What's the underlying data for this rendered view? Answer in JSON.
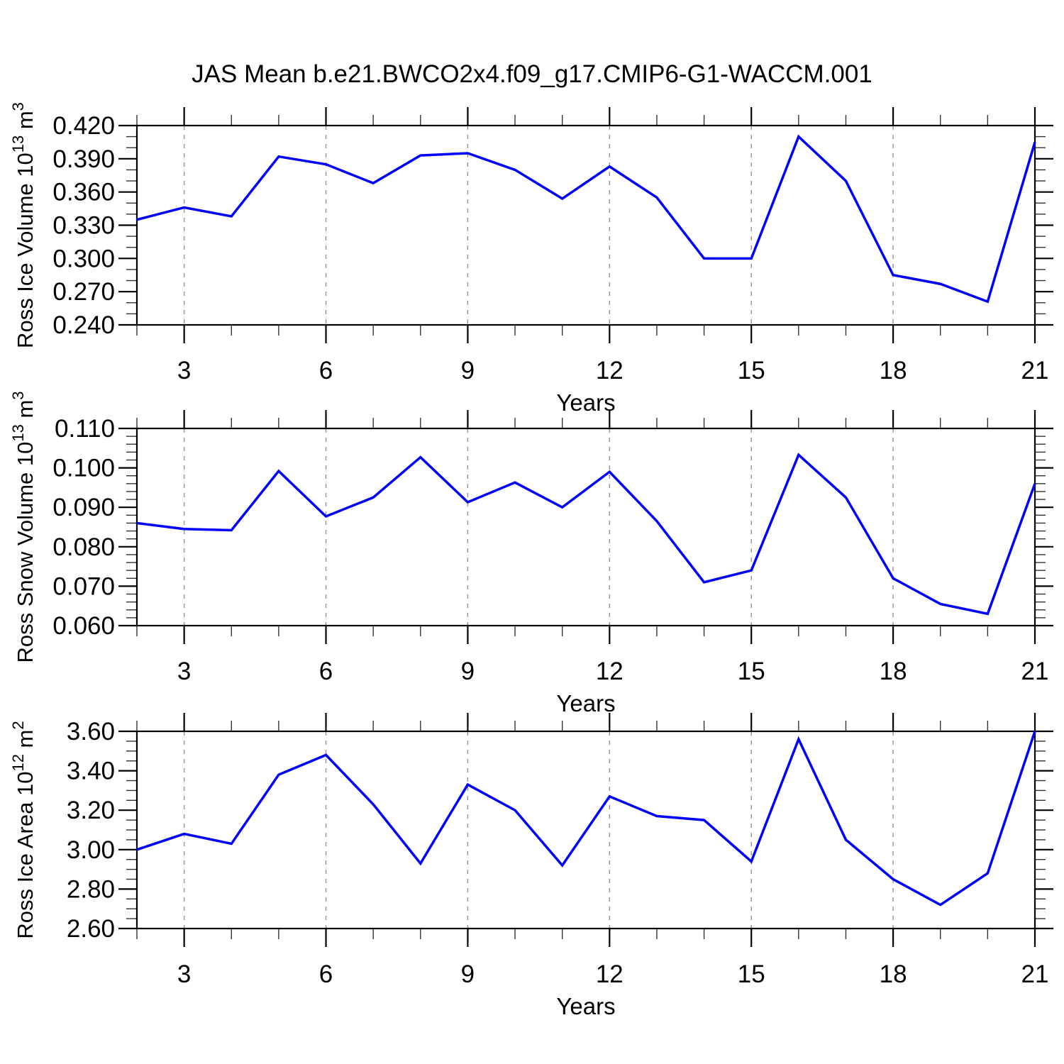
{
  "title": "JAS Mean b.e21.BWCO2x4.f09_g17.CMIP6-G1-WACCM.001",
  "line_color": "#0000ff",
  "gridline_color": "#999999",
  "axis_color": "#000000",
  "chart_data": [
    {
      "type": "line",
      "name": "ross-ice-volume",
      "ylabel": "Ross Ice Volume 10^13 m^3",
      "xlabel": "Years",
      "x": [
        2,
        3,
        4,
        5,
        6,
        7,
        8,
        9,
        10,
        11,
        12,
        13,
        14,
        15,
        16,
        17,
        18,
        19,
        20,
        21
      ],
      "values": [
        0.335,
        0.346,
        0.338,
        0.392,
        0.385,
        0.368,
        0.393,
        0.395,
        0.38,
        0.354,
        0.383,
        0.355,
        0.3,
        0.3,
        0.41,
        0.37,
        0.285,
        0.277,
        0.261,
        0.405
      ],
      "xlim": [
        2,
        21
      ],
      "ylim": [
        0.24,
        0.42
      ],
      "xticks": [
        3,
        6,
        9,
        12,
        15,
        18,
        21
      ],
      "xtick_labels": [
        "3",
        "6",
        "9",
        "12",
        "15",
        "18",
        "21"
      ],
      "x_minor_step": 1,
      "ytick_labels": [
        "0.240",
        "0.270",
        "0.300",
        "0.330",
        "0.360",
        "0.390",
        "0.420"
      ],
      "y_minor_step": 0.01,
      "grid": "vertical-dashed-at-major-xticks",
      "legend": "none"
    },
    {
      "type": "line",
      "name": "ross-snow-volume",
      "ylabel": "Ross Snow Volume 10^13 m^3",
      "xlabel": "Years",
      "x": [
        2,
        3,
        4,
        5,
        6,
        7,
        8,
        9,
        10,
        11,
        12,
        13,
        14,
        15,
        16,
        17,
        18,
        19,
        20,
        21
      ],
      "values": [
        0.086,
        0.0845,
        0.0842,
        0.0992,
        0.0877,
        0.0925,
        0.1027,
        0.0913,
        0.0963,
        0.09,
        0.099,
        0.0865,
        0.071,
        0.074,
        0.1033,
        0.0925,
        0.072,
        0.0655,
        0.063,
        0.096
      ],
      "xlim": [
        2,
        21
      ],
      "ylim": [
        0.06,
        0.11
      ],
      "xticks": [
        3,
        6,
        9,
        12,
        15,
        18,
        21
      ],
      "xtick_labels": [
        "3",
        "6",
        "9",
        "12",
        "15",
        "18",
        "21"
      ],
      "x_minor_step": 1,
      "ytick_labels": [
        "0.060",
        "0.070",
        "0.080",
        "0.090",
        "0.100",
        "0.110"
      ],
      "y_minor_step": 0.002,
      "grid": "vertical-dashed-at-major-xticks",
      "legend": "none"
    },
    {
      "type": "line",
      "name": "ross-ice-area",
      "ylabel": "Ross Ice Area 10^12 m^2",
      "xlabel": "Years",
      "x": [
        2,
        3,
        4,
        5,
        6,
        7,
        8,
        9,
        10,
        11,
        12,
        13,
        14,
        15,
        16,
        17,
        18,
        19,
        20,
        21
      ],
      "values": [
        3.0,
        3.08,
        3.03,
        3.38,
        3.48,
        3.23,
        2.93,
        3.33,
        3.2,
        2.92,
        3.27,
        3.17,
        3.15,
        2.94,
        3.56,
        3.05,
        2.85,
        2.72,
        2.88,
        3.6
      ],
      "xlim": [
        2,
        21
      ],
      "ylim": [
        2.6,
        3.6
      ],
      "xticks": [
        3,
        6,
        9,
        12,
        15,
        18,
        21
      ],
      "xtick_labels": [
        "3",
        "6",
        "9",
        "12",
        "15",
        "18",
        "21"
      ],
      "x_minor_step": 1,
      "ytick_labels": [
        "2.60",
        "2.80",
        "3.00",
        "3.20",
        "3.40",
        "3.60"
      ],
      "y_minor_step": 0.05,
      "grid": "vertical-dashed-at-major-xticks",
      "legend": "none"
    }
  ]
}
